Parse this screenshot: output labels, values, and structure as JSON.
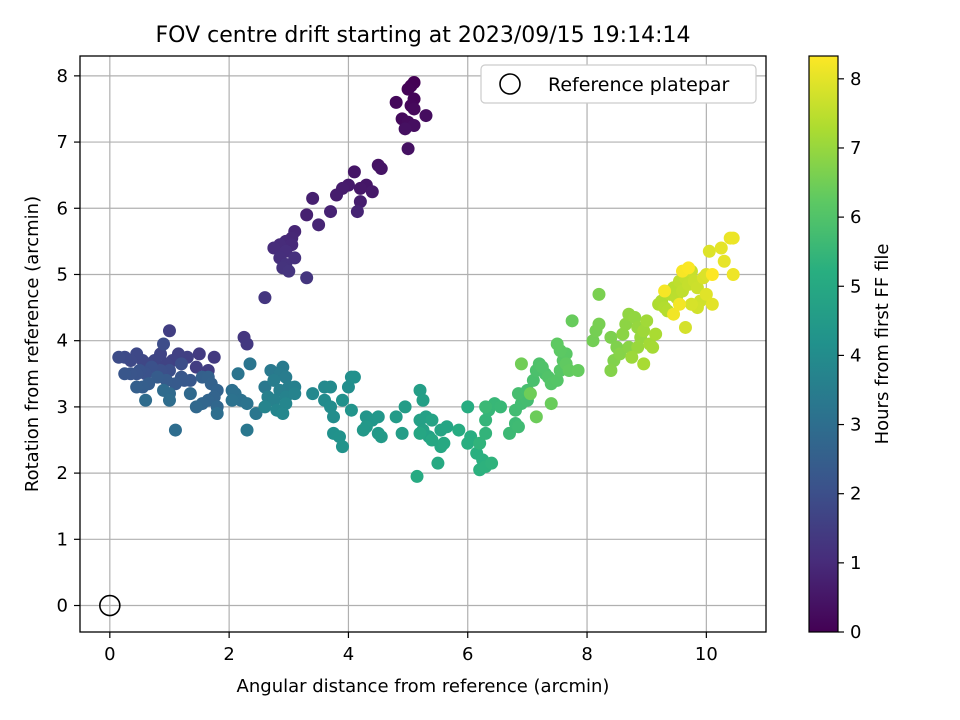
{
  "chart_data": {
    "type": "scatter",
    "title": "FOV centre drift starting at 2023/09/15 19:14:14",
    "xlabel": "Angular distance from reference (arcmin)",
    "ylabel": "Rotation from reference (arcmin)",
    "xlim": [
      -0.5,
      11
    ],
    "ylim": [
      -0.4,
      8.3
    ],
    "xticks": [
      0,
      2,
      4,
      6,
      8,
      10
    ],
    "yticks": [
      0,
      1,
      2,
      3,
      4,
      5,
      6,
      7,
      8
    ],
    "grid": true,
    "legend": {
      "placement": "top-right",
      "entries": [
        "Reference platepar"
      ]
    },
    "colorbar": {
      "label": "Hours from first FF file",
      "range": [
        0,
        8.33
      ],
      "ticks": [
        0,
        1,
        2,
        3,
        4,
        5,
        6,
        7,
        8
      ],
      "colormap": "viridis"
    },
    "reference": {
      "name": "Reference platepar",
      "x": 0,
      "y": 0
    },
    "series": [
      {
        "points": [
          [
            5.1,
            7.9
          ],
          [
            5.05,
            7.85
          ],
          [
            5.0,
            7.8
          ],
          [
            5.1,
            7.65
          ],
          [
            5.05,
            7.55
          ],
          [
            4.8,
            7.6
          ],
          [
            5.1,
            7.5
          ],
          [
            4.9,
            7.35
          ],
          [
            5.0,
            7.3
          ],
          [
            5.3,
            7.4
          ],
          [
            5.1,
            7.25
          ],
          [
            4.95,
            7.2
          ],
          [
            5.0,
            6.9
          ],
          [
            4.5,
            6.65
          ],
          [
            4.55,
            6.6
          ],
          [
            4.1,
            6.55
          ],
          [
            4.3,
            6.35
          ],
          [
            4.2,
            6.3
          ],
          [
            4.4,
            6.25
          ],
          [
            4.0,
            6.35
          ],
          [
            3.9,
            6.3
          ],
          [
            3.8,
            6.2
          ],
          [
            4.2,
            6.1
          ],
          [
            3.4,
            6.15
          ],
          [
            3.3,
            5.9
          ],
          [
            3.7,
            5.95
          ],
          [
            4.15,
            5.95
          ],
          [
            3.5,
            5.75
          ],
          [
            3.1,
            5.65
          ],
          [
            3.05,
            5.55
          ],
          [
            2.95,
            5.5
          ],
          [
            3.05,
            5.45
          ],
          [
            2.85,
            5.45
          ],
          [
            2.75,
            5.4
          ],
          [
            2.95,
            5.35
          ],
          [
            2.85,
            5.25
          ],
          [
            3.1,
            5.25
          ],
          [
            2.95,
            5.15
          ],
          [
            2.9,
            5.1
          ],
          [
            3.0,
            5.05
          ],
          [
            3.3,
            4.95
          ],
          [
            2.6,
            4.65
          ],
          [
            2.25,
            4.05
          ],
          [
            2.3,
            3.95
          ],
          [
            1.75,
            3.75
          ],
          [
            1.5,
            3.8
          ],
          [
            1.65,
            3.55
          ],
          [
            1.45,
            3.6
          ],
          [
            1.0,
            4.15
          ],
          [
            1.3,
            3.75
          ],
          [
            1.15,
            3.8
          ],
          [
            1.05,
            3.7
          ],
          [
            0.95,
            3.65
          ],
          [
            0.85,
            3.8
          ],
          [
            0.75,
            3.7
          ],
          [
            0.65,
            3.65
          ],
          [
            0.55,
            3.7
          ],
          [
            0.45,
            3.8
          ],
          [
            0.35,
            3.7
          ],
          [
            0.25,
            3.75
          ],
          [
            0.15,
            3.75
          ],
          [
            0.9,
            3.95
          ],
          [
            1.2,
            3.65
          ],
          [
            1.0,
            3.55
          ],
          [
            0.85,
            3.55
          ],
          [
            0.7,
            3.6
          ],
          [
            0.6,
            3.5
          ],
          [
            0.5,
            3.55
          ],
          [
            0.45,
            3.5
          ],
          [
            0.35,
            3.5
          ],
          [
            0.25,
            3.5
          ],
          [
            1.2,
            3.45
          ],
          [
            1.35,
            3.4
          ],
          [
            1.25,
            3.4
          ],
          [
            1.1,
            3.35
          ],
          [
            0.95,
            3.4
          ],
          [
            0.8,
            3.45
          ],
          [
            0.65,
            3.35
          ],
          [
            0.55,
            3.3
          ],
          [
            0.45,
            3.3
          ],
          [
            1.55,
            3.45
          ],
          [
            1.65,
            3.45
          ],
          [
            1.7,
            3.35
          ],
          [
            1.8,
            3.25
          ],
          [
            1.75,
            3.15
          ],
          [
            1.65,
            3.1
          ],
          [
            1.55,
            3.05
          ],
          [
            1.8,
            3.0
          ],
          [
            1.45,
            3.0
          ],
          [
            1.35,
            3.2
          ],
          [
            1.0,
            3.2
          ],
          [
            0.9,
            3.25
          ],
          [
            0.6,
            3.1
          ],
          [
            1.0,
            3.1
          ],
          [
            1.1,
            2.65
          ],
          [
            1.8,
            2.9
          ],
          [
            2.05,
            3.25
          ],
          [
            2.1,
            3.2
          ],
          [
            2.2,
            3.1
          ],
          [
            2.05,
            3.1
          ],
          [
            2.3,
            3.05
          ],
          [
            2.15,
            3.5
          ],
          [
            2.35,
            3.65
          ],
          [
            2.45,
            2.9
          ],
          [
            2.3,
            2.65
          ],
          [
            2.6,
            3.3
          ],
          [
            2.7,
            3.55
          ],
          [
            2.9,
            3.6
          ],
          [
            2.85,
            3.5
          ],
          [
            2.95,
            3.45
          ],
          [
            2.75,
            3.4
          ],
          [
            3.0,
            3.3
          ],
          [
            2.85,
            3.25
          ],
          [
            3.1,
            3.3
          ],
          [
            2.65,
            3.15
          ],
          [
            2.75,
            3.1
          ],
          [
            2.95,
            3.15
          ],
          [
            3.1,
            3.2
          ],
          [
            2.6,
            3.0
          ],
          [
            2.8,
            2.95
          ],
          [
            2.95,
            3.05
          ],
          [
            2.9,
            2.9
          ],
          [
            3.4,
            3.2
          ],
          [
            3.6,
            3.3
          ],
          [
            3.7,
            3.3
          ],
          [
            3.6,
            3.1
          ],
          [
            3.7,
            3.0
          ],
          [
            3.75,
            2.85
          ],
          [
            4.0,
            3.3
          ],
          [
            4.05,
            3.45
          ],
          [
            4.1,
            3.45
          ],
          [
            3.9,
            3.1
          ],
          [
            3.75,
            2.6
          ],
          [
            3.85,
            2.55
          ],
          [
            3.9,
            2.4
          ],
          [
            4.05,
            2.95
          ],
          [
            4.3,
            2.85
          ],
          [
            4.4,
            2.8
          ],
          [
            4.5,
            2.85
          ],
          [
            4.3,
            2.7
          ],
          [
            4.25,
            2.65
          ],
          [
            4.5,
            2.6
          ],
          [
            4.55,
            2.55
          ],
          [
            4.8,
            2.85
          ],
          [
            4.95,
            3.0
          ],
          [
            4.9,
            2.6
          ],
          [
            5.2,
            3.25
          ],
          [
            5.25,
            3.1
          ],
          [
            5.3,
            2.85
          ],
          [
            5.2,
            2.8
          ],
          [
            5.25,
            2.65
          ],
          [
            5.35,
            2.55
          ],
          [
            5.4,
            2.8
          ],
          [
            5.55,
            2.65
          ],
          [
            5.65,
            2.7
          ],
          [
            5.2,
            2.6
          ],
          [
            5.4,
            2.5
          ],
          [
            5.55,
            2.4
          ],
          [
            5.6,
            2.45
          ],
          [
            5.5,
            2.15
          ],
          [
            5.15,
            1.95
          ],
          [
            5.85,
            2.65
          ],
          [
            6.0,
            3.0
          ],
          [
            6.05,
            2.55
          ],
          [
            6.0,
            2.45
          ],
          [
            6.15,
            2.3
          ],
          [
            6.25,
            2.2
          ],
          [
            6.2,
            2.05
          ],
          [
            6.3,
            2.1
          ],
          [
            6.4,
            2.15
          ],
          [
            6.2,
            2.45
          ],
          [
            6.3,
            2.6
          ],
          [
            6.3,
            2.8
          ],
          [
            6.35,
            2.95
          ],
          [
            6.45,
            3.05
          ],
          [
            6.55,
            3.0
          ],
          [
            6.3,
            3.0
          ],
          [
            6.7,
            2.6
          ],
          [
            6.8,
            2.75
          ],
          [
            6.85,
            2.7
          ],
          [
            6.8,
            2.95
          ],
          [
            6.9,
            3.05
          ],
          [
            7.0,
            3.1
          ],
          [
            6.85,
            3.2
          ],
          [
            7.0,
            3.25
          ],
          [
            7.1,
            3.4
          ],
          [
            7.15,
            3.55
          ],
          [
            7.3,
            3.5
          ],
          [
            7.2,
            3.65
          ],
          [
            7.25,
            3.6
          ],
          [
            7.35,
            3.45
          ],
          [
            7.4,
            3.35
          ],
          [
            7.5,
            3.4
          ],
          [
            7.55,
            3.55
          ],
          [
            7.6,
            3.7
          ],
          [
            7.65,
            3.8
          ],
          [
            7.55,
            3.85
          ],
          [
            7.5,
            3.95
          ],
          [
            7.65,
            3.65
          ],
          [
            7.7,
            3.55
          ],
          [
            7.85,
            3.55
          ],
          [
            7.75,
            4.3
          ],
          [
            7.4,
            3.05
          ],
          [
            7.15,
            2.85
          ],
          [
            7.05,
            3.2
          ],
          [
            6.9,
            3.65
          ],
          [
            8.1,
            4.0
          ],
          [
            8.15,
            4.15
          ],
          [
            8.2,
            4.25
          ],
          [
            8.2,
            4.7
          ],
          [
            8.4,
            4.05
          ],
          [
            8.5,
            3.9
          ],
          [
            8.45,
            3.7
          ],
          [
            8.4,
            3.55
          ],
          [
            8.55,
            3.8
          ],
          [
            8.7,
            3.9
          ],
          [
            8.6,
            4.1
          ],
          [
            8.65,
            4.25
          ],
          [
            8.7,
            4.4
          ],
          [
            8.8,
            4.35
          ],
          [
            8.85,
            4.2
          ],
          [
            8.9,
            4.05
          ],
          [
            8.85,
            3.9
          ],
          [
            8.75,
            3.75
          ],
          [
            8.95,
            4.15
          ],
          [
            9.0,
            4.3
          ],
          [
            9.05,
            3.95
          ],
          [
            9.1,
            3.9
          ],
          [
            8.95,
            3.65
          ],
          [
            9.15,
            4.1
          ],
          [
            9.2,
            4.55
          ],
          [
            9.25,
            4.6
          ],
          [
            9.3,
            4.5
          ],
          [
            9.35,
            4.45
          ],
          [
            9.4,
            4.7
          ],
          [
            9.45,
            4.8
          ],
          [
            9.5,
            4.65
          ],
          [
            9.55,
            4.9
          ],
          [
            9.6,
            4.75
          ],
          [
            9.65,
            4.95
          ],
          [
            9.7,
            4.85
          ],
          [
            9.75,
            5.05
          ],
          [
            9.8,
            4.9
          ],
          [
            9.85,
            4.8
          ],
          [
            9.9,
            4.6
          ],
          [
            9.85,
            4.5
          ],
          [
            9.65,
            4.2
          ],
          [
            9.75,
            4.55
          ],
          [
            9.95,
            4.95
          ],
          [
            10.0,
            5.0
          ],
          [
            10.05,
            5.35
          ],
          [
            10.0,
            4.7
          ],
          [
            10.1,
            4.55
          ],
          [
            10.25,
            5.4
          ],
          [
            10.3,
            5.2
          ],
          [
            10.4,
            5.55
          ],
          [
            10.45,
            5.55
          ],
          [
            10.45,
            5.0
          ],
          [
            9.45,
            4.4
          ],
          [
            9.55,
            4.55
          ],
          [
            9.3,
            4.75
          ],
          [
            9.6,
            5.05
          ],
          [
            9.7,
            5.1
          ],
          [
            10.1,
            5.0
          ]
        ]
      }
    ]
  }
}
